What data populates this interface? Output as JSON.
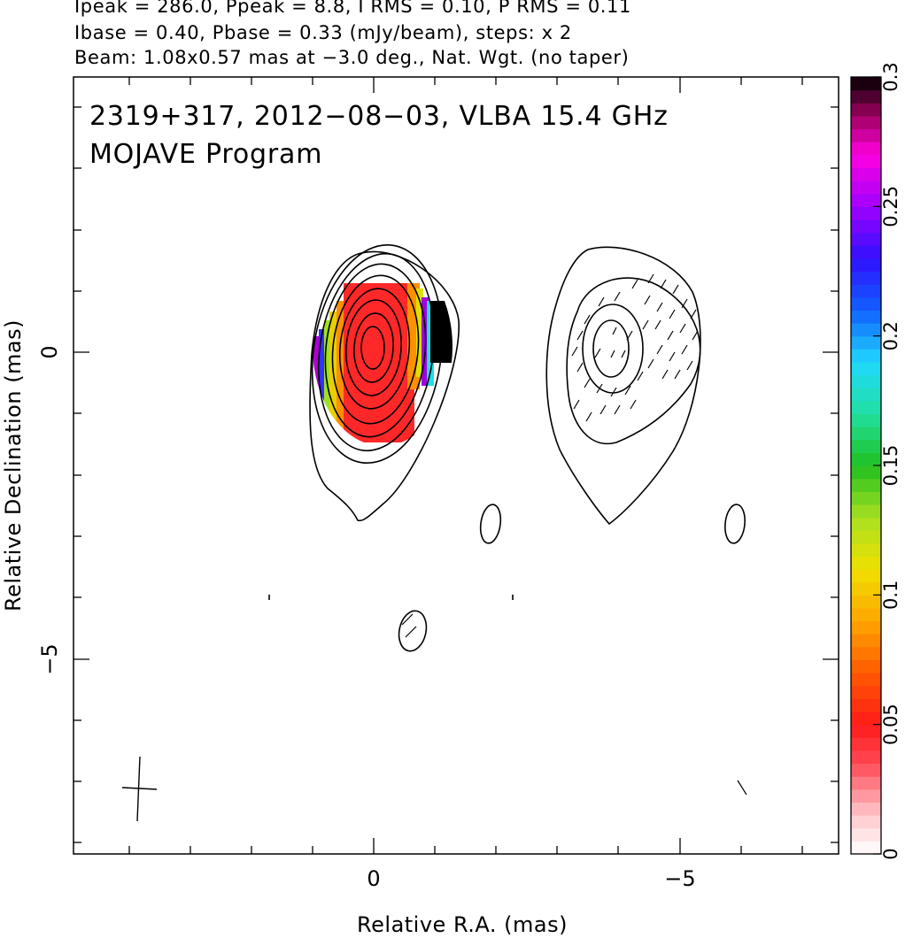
{
  "header": {
    "line1": "Ipeak = 286.0, Ppeak = 8.8, I RMS = 0.10, P RMS = 0.11",
    "line2": "Ibase = 0.40, Pbase = 0.33 (mJy/beam), steps: x 2",
    "line3": "Beam: 1.08x0.57 mas at −3.0 deg., Nat. Wgt. (no taper)"
  },
  "chart_data": {
    "type": "heatmap",
    "title": "2319+317, 2012−08−03, VLBA 15.4 GHz",
    "subtitle": "MOJAVE Program",
    "xlabel": "Relative R.A. (mas)",
    "ylabel": "Relative Declination (mas)",
    "xlim": [
      4.9,
      -7.8
    ],
    "ylim": [
      -8.0,
      4.7
    ],
    "x_tick_labels": [
      "0",
      "−5"
    ],
    "y_tick_labels": [
      "0",
      "−5"
    ],
    "colorbar": {
      "range": [
        0,
        0.3
      ],
      "tick_values": [
        0,
        0.05,
        0.1,
        0.15,
        0.2,
        0.25,
        0.3
      ],
      "tick_labels": [
        "0",
        "0.05",
        "0.1",
        "0.15",
        "0.2",
        "0.25",
        "0.3"
      ]
    },
    "components": [
      {
        "name": "core",
        "ra": 0.0,
        "dec": 0.0,
        "contours": 9,
        "fractional_polarization": "0.03–0.3"
      },
      {
        "name": "jet",
        "ra": -3.9,
        "dec": 0.0,
        "contours": 4,
        "evpa_ticks": true
      },
      {
        "name": "blob",
        "ra": -1.9,
        "dec": -2.9,
        "contours": 1
      },
      {
        "name": "blob",
        "ra": -6.0,
        "dec": -2.9,
        "contours": 1
      },
      {
        "name": "blob",
        "ra": -0.6,
        "dec": -4.6,
        "contours": 1,
        "evpa_ticks": true
      }
    ]
  }
}
